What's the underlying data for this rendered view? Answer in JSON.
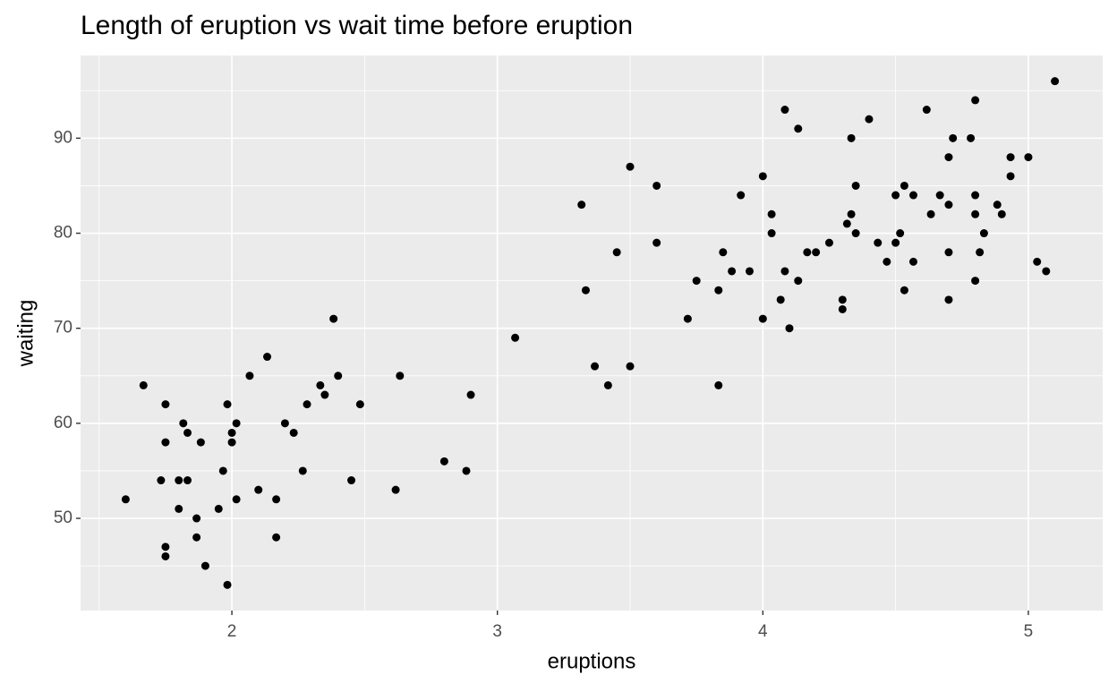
{
  "chart_data": {
    "type": "scatter",
    "title": "Length of eruption vs wait time before eruption",
    "x_label": "eruptions",
    "y_label": "waiting",
    "color": "#000000",
    "grid": true,
    "xlim": [
      1.43,
      5.28
    ],
    "ylim": [
      40.3,
      98.7
    ],
    "xticks": [
      2,
      3,
      4,
      5
    ],
    "yticks": [
      50,
      60,
      70,
      80,
      90
    ],
    "x": [
      3.6,
      1.8,
      3.333,
      2.283,
      4.533,
      2.883,
      4.7,
      3.6,
      1.95,
      4.35,
      1.833,
      3.917,
      4.2,
      1.75,
      4.7,
      2.167,
      1.75,
      4.8,
      1.6,
      4.25,
      1.8,
      3.45,
      3.067,
      4.533,
      1.967,
      4.083,
      3.85,
      4.433,
      4.3,
      4.467,
      3.367,
      4.033,
      3.833,
      2.017,
      1.867,
      4.833,
      1.833,
      4.783,
      4.35,
      1.883,
      4.567,
      1.75,
      3.317,
      3.833,
      2.1,
      4.633,
      2.0,
      4.8,
      4.716,
      1.733,
      4.883,
      3.717,
      1.667,
      4.567,
      4.317,
      2.233,
      4.5,
      4.8,
      1.817,
      4.4,
      4.167,
      4.7,
      2.067,
      4.7,
      4.033,
      4.5,
      4.0,
      1.983,
      5.067,
      2.017,
      3.883,
      4.133,
      4.333,
      4.1,
      2.633,
      4.067,
      4.933,
      3.95,
      4.517,
      2.167,
      4.0,
      2.2,
      4.333,
      1.867,
      4.817,
      4.3,
      4.667,
      3.75,
      4.9,
      5.1,
      5.0,
      4.8,
      1.983,
      4.083,
      4.133,
      3.5,
      2.8,
      2.9,
      2.383,
      2.133,
      2.483,
      2.617,
      3.5,
      3.417,
      5.033,
      4.933,
      4.617,
      1.75,
      2.35,
      2.4,
      1.9,
      2.267,
      2.333,
      2.0,
      2.45
    ],
    "y": [
      79,
      54,
      74,
      62,
      85,
      55,
      88,
      85,
      51,
      85,
      54,
      84,
      78,
      47,
      83,
      52,
      62,
      84,
      52,
      79,
      51,
      78,
      69,
      74,
      55,
      76,
      78,
      79,
      73,
      77,
      66,
      80,
      74,
      52,
      48,
      80,
      59,
      90,
      80,
      58,
      84,
      58,
      83,
      64,
      53,
      82,
      59,
      75,
      90,
      54,
      83,
      71,
      64,
      77,
      81,
      59,
      84,
      82,
      60,
      92,
      78,
      78,
      65,
      73,
      82,
      79,
      71,
      62,
      76,
      60,
      76,
      75,
      82,
      70,
      65,
      73,
      88,
      76,
      80,
      48,
      86,
      60,
      90,
      50,
      78,
      72,
      84,
      75,
      82,
      96,
      88,
      94,
      43,
      93,
      91,
      87,
      56,
      63,
      71,
      67,
      62,
      53,
      66,
      64,
      77,
      86,
      93,
      46,
      63,
      65,
      45,
      55,
      64,
      58,
      54
    ]
  }
}
